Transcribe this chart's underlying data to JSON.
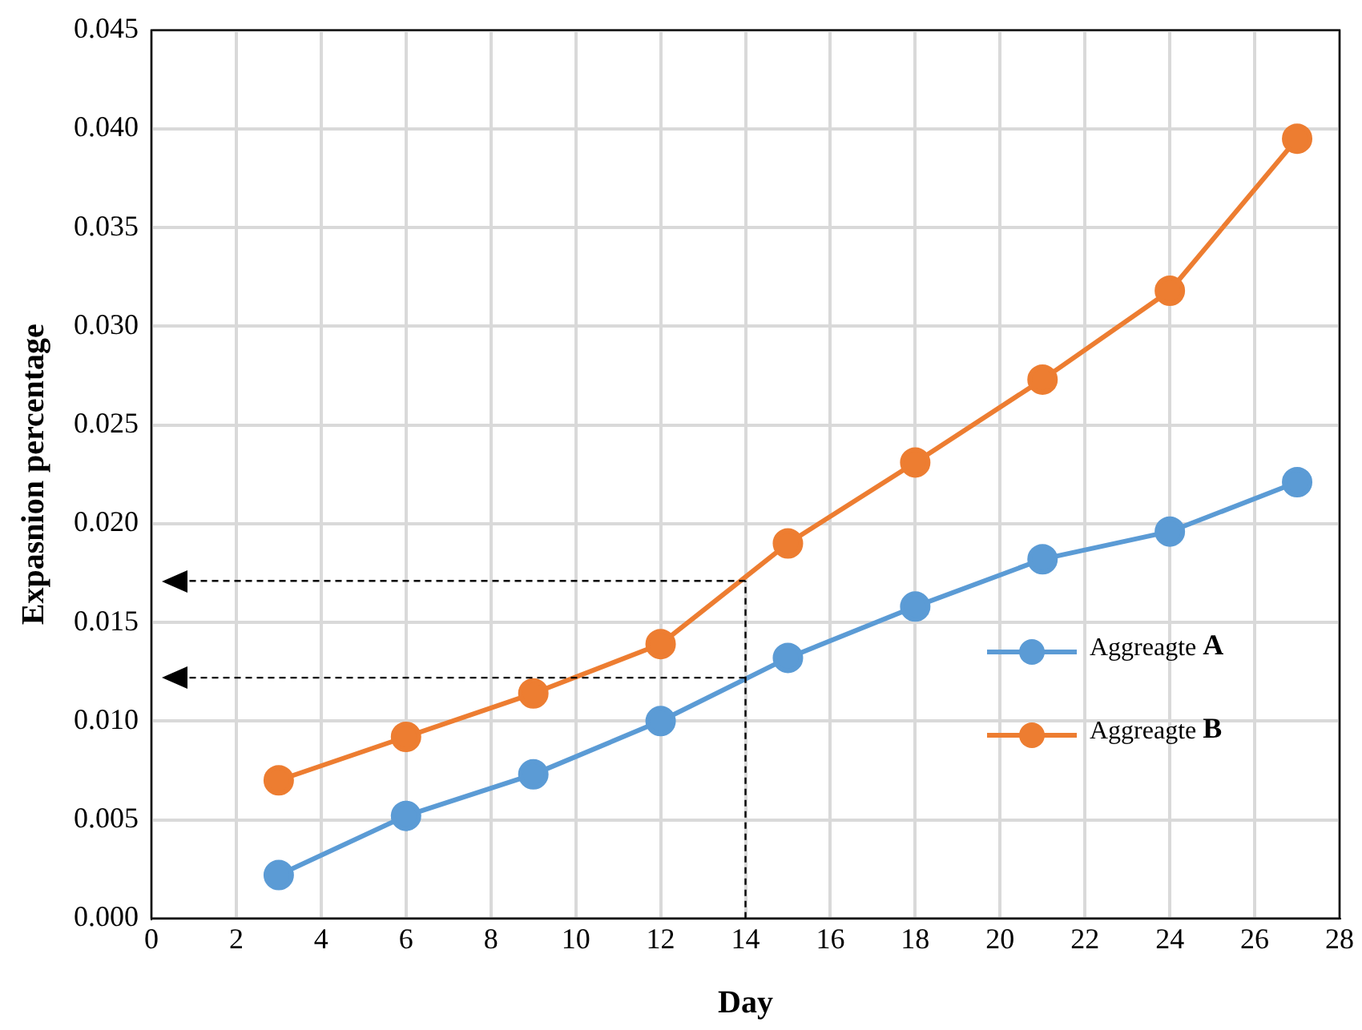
{
  "chart_data": {
    "type": "line",
    "xlabel": "Day",
    "ylabel": "Expasnion percentage",
    "x": [
      3,
      6,
      9,
      12,
      15,
      18,
      21,
      24,
      27
    ],
    "series": [
      {
        "name": "Aggreagte A",
        "color": "#5b9bd5",
        "values": [
          0.0022,
          0.0052,
          0.0073,
          0.01,
          0.0132,
          0.0158,
          0.0182,
          0.0196,
          0.0221
        ]
      },
      {
        "name": "Aggreagte B",
        "color": "#ed7d31",
        "values": [
          0.007,
          0.0092,
          0.0114,
          0.0139,
          0.019,
          0.0231,
          0.0273,
          0.0318,
          0.0395
        ]
      }
    ],
    "xlim": [
      0,
      28
    ],
    "xticks": [
      0,
      2,
      4,
      6,
      8,
      10,
      12,
      14,
      16,
      18,
      20,
      22,
      24,
      26,
      28
    ],
    "ylim": [
      0,
      0.045
    ],
    "yticks": [
      {
        "value": 0,
        "label": "0.000"
      },
      {
        "value": 0.005,
        "label": "0.005"
      },
      {
        "value": 0.01,
        "label": "0.010"
      },
      {
        "value": 0.015,
        "label": "0.015"
      },
      {
        "value": 0.02,
        "label": "0.020"
      },
      {
        "value": 0.025,
        "label": "0.025"
      },
      {
        "value": 0.03,
        "label": "0.030"
      },
      {
        "value": 0.035,
        "label": "0.035"
      },
      {
        "value": 0.04,
        "label": "0.040"
      },
      {
        "value": 0.045,
        "label": "0.045"
      }
    ],
    "ref_lines": [
      {
        "axis": "x",
        "value": 14,
        "color": "#000000",
        "line_style": "dashed"
      },
      {
        "axis": "y",
        "value": 0.0171,
        "color": "#000000",
        "line_style": "dashed"
      },
      {
        "axis": "y",
        "value": 0.0122,
        "color": "#000000",
        "line_style": "dashed"
      }
    ],
    "grid": true,
    "legend": "right",
    "marker": "circle",
    "line_style": "solid"
  }
}
